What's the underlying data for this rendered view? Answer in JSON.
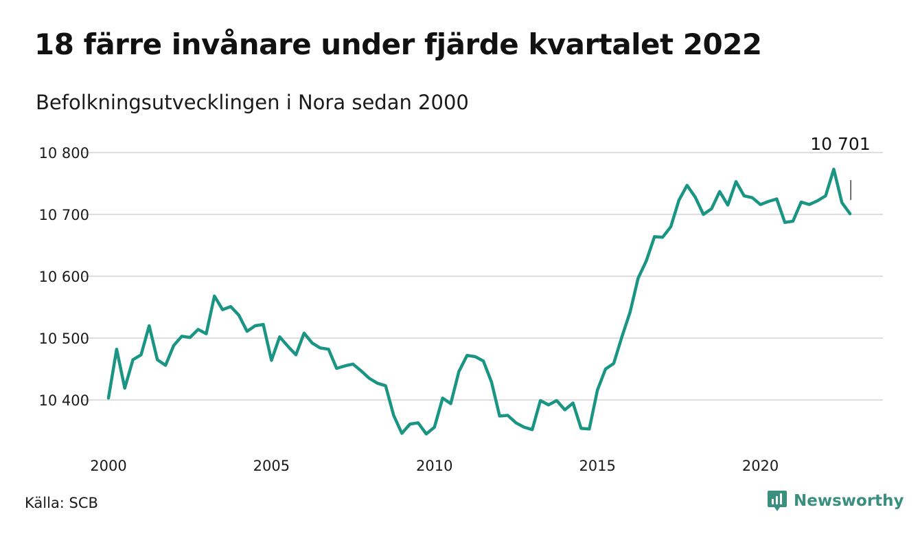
{
  "title": "18 färre invånare under fjärde kvartalet 2022",
  "subtitle": "Befolkningsutvecklingen i Nora sedan 2000",
  "source": "Källa: SCB",
  "brand": {
    "name": "Newsworthy",
    "icon": "newsworthy-logo-icon",
    "color": "#3a8f7e"
  },
  "colors": {
    "line": "#1a9583",
    "grid": "#dedede",
    "text": "#111111"
  },
  "chart_data": {
    "type": "line",
    "title": "18 färre invånare under fjärde kvartalet 2022",
    "subtitle": "Befolkningsutvecklingen i Nora sedan 2000",
    "xlabel": "",
    "ylabel": "",
    "x_ticks": [
      2000,
      2005,
      2010,
      2015,
      2020
    ],
    "x_tick_labels": [
      "2000",
      "2005",
      "2010",
      "2015",
      "2020"
    ],
    "y_ticks": [
      10400,
      10500,
      10600,
      10700,
      10800
    ],
    "y_tick_labels": [
      "10 400",
      "10 500",
      "10 600",
      "10 700",
      "10 800"
    ],
    "xlim": [
      2000,
      2023
    ],
    "ylim": [
      10330,
      10820
    ],
    "grid": "horizontal",
    "last_value_label": "10 701",
    "series": [
      {
        "x": [
          2000.0,
          2000.25,
          2000.5,
          2000.75,
          2001.0,
          2001.25,
          2001.5,
          2001.75,
          2002.0,
          2002.25,
          2002.5,
          2002.75,
          2003.0,
          2003.25,
          2003.5,
          2003.75,
          2004.0,
          2004.25,
          2004.5,
          2004.75,
          2005.0,
          2005.25,
          2005.5,
          2005.75,
          2006.0,
          2006.25,
          2006.5,
          2006.75,
          2007.0,
          2007.25,
          2007.5,
          2007.75,
          2008.0,
          2008.25,
          2008.5,
          2008.75,
          2009.0,
          2009.25,
          2009.5,
          2009.75,
          2010.0,
          2010.25,
          2010.5,
          2010.75,
          2011.0,
          2011.25,
          2011.5,
          2011.75,
          2012.0,
          2012.25,
          2012.5,
          2012.75,
          2013.0,
          2013.25,
          2013.5,
          2013.75,
          2014.0,
          2014.25,
          2014.5,
          2014.75,
          2015.0,
          2015.25,
          2015.5,
          2015.75,
          2016.0,
          2016.25,
          2016.5,
          2016.75,
          2017.0,
          2017.25,
          2017.5,
          2017.75,
          2018.0,
          2018.25,
          2018.5,
          2018.75,
          2019.0,
          2019.25,
          2019.5,
          2019.75,
          2020.0,
          2020.25,
          2020.5,
          2020.75,
          2021.0,
          2021.25,
          2021.5,
          2021.75,
          2022.0,
          2022.25,
          2022.5,
          2022.75
        ],
        "values": [
          10403,
          10482,
          10419,
          10465,
          10473,
          10520,
          10465,
          10456,
          10488,
          10503,
          10501,
          10514,
          10507,
          10568,
          10546,
          10551,
          10537,
          10511,
          10520,
          10522,
          10464,
          10502,
          10487,
          10473,
          10508,
          10492,
          10484,
          10482,
          10451,
          10455,
          10458,
          10447,
          10435,
          10427,
          10423,
          10375,
          10346,
          10361,
          10363,
          10345,
          10356,
          10403,
          10394,
          10446,
          10472,
          10470,
          10463,
          10429,
          10374,
          10375,
          10363,
          10356,
          10352,
          10399,
          10392,
          10399,
          10384,
          10395,
          10354,
          10353,
          10416,
          10450,
          10459,
          10502,
          10542,
          10597,
          10625,
          10664,
          10663,
          10680,
          10723,
          10747,
          10728,
          10700,
          10709,
          10737,
          10715,
          10753,
          10730,
          10727,
          10716,
          10721,
          10725,
          10687,
          10689,
          10720,
          10716,
          10722,
          10730,
          10773,
          10719,
          10701
        ]
      }
    ]
  }
}
